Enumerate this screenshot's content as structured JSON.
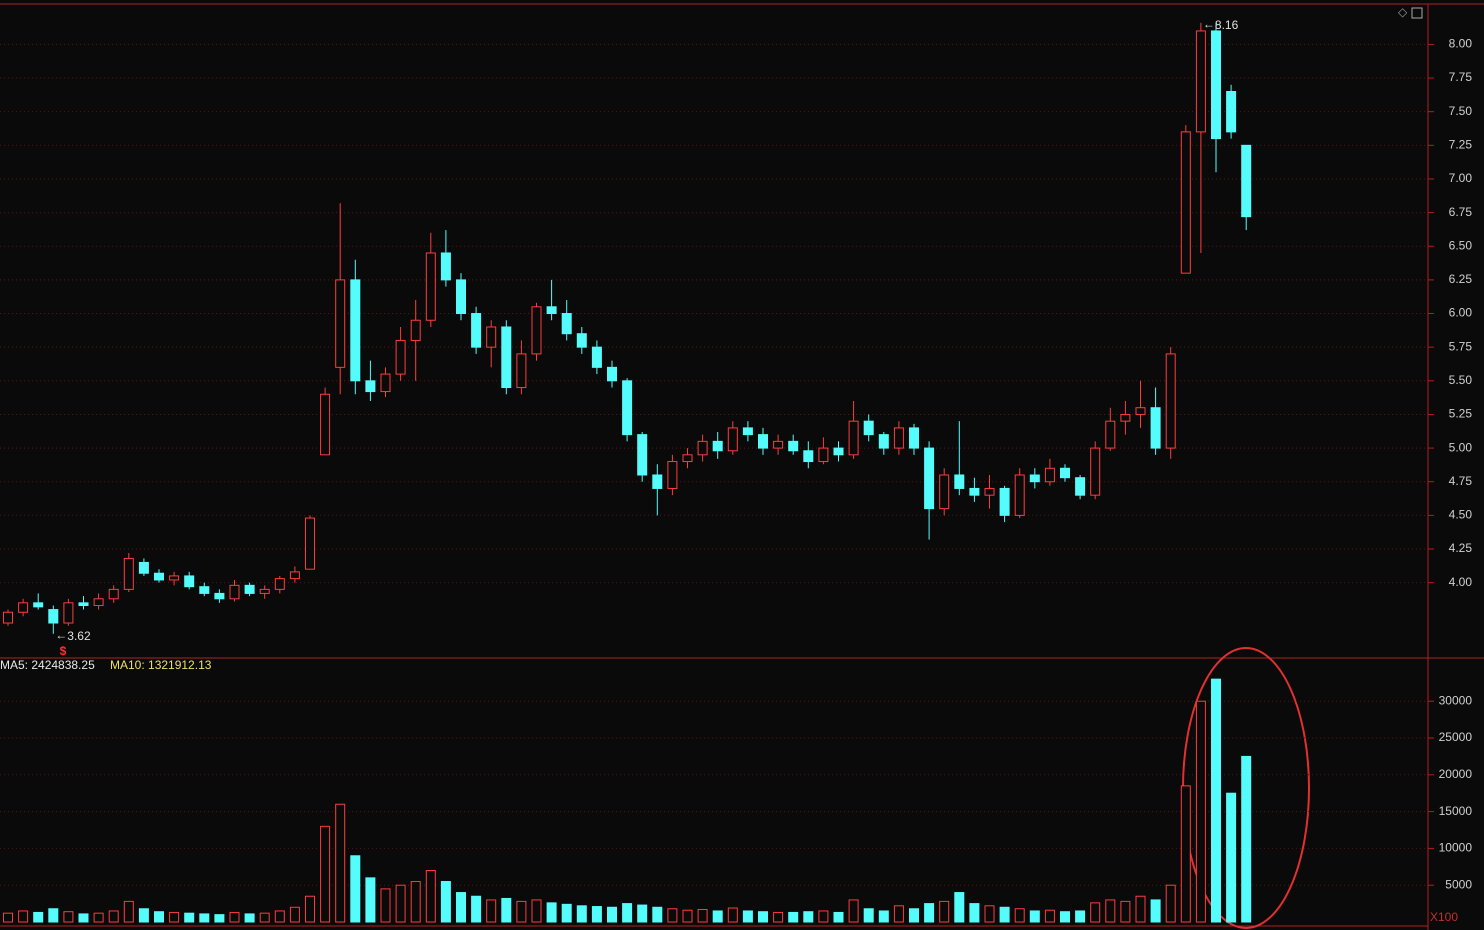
{
  "chart_data": [
    {
      "type": "candlestick",
      "up_color": "#ff3c3c",
      "down_color": "#54fcfc",
      "ylim": [
        3.44,
        8.33
      ],
      "yticks": [
        {
          "value": 4,
          "label": "4.00"
        },
        {
          "value": 4.25,
          "label": "4.25"
        },
        {
          "value": 4.5,
          "label": "4.50"
        },
        {
          "value": 4.75,
          "label": "4.75"
        },
        {
          "value": 5,
          "label": "5.00"
        },
        {
          "value": 5.25,
          "label": "5.25"
        },
        {
          "value": 5.5,
          "label": "5.50"
        },
        {
          "value": 5.75,
          "label": "5.75"
        },
        {
          "value": 6,
          "label": "6.00"
        },
        {
          "value": 6.25,
          "label": "6.25"
        },
        {
          "value": 6.5,
          "label": "6.50"
        },
        {
          "value": 6.75,
          "label": "6.75"
        },
        {
          "value": 7,
          "label": "7.00"
        },
        {
          "value": 7.25,
          "label": "7.25"
        },
        {
          "value": 7.5,
          "label": "7.50"
        },
        {
          "value": 7.75,
          "label": "7.75"
        },
        {
          "value": 8,
          "label": "8.00"
        }
      ],
      "grid": true,
      "open": [
        3.7,
        3.78,
        3.85,
        3.8,
        3.7,
        3.85,
        3.83,
        3.88,
        3.95,
        4.15,
        4.07,
        4.02,
        4.05,
        3.97,
        3.92,
        3.88,
        3.98,
        3.92,
        3.95,
        4.03,
        4.1,
        4.95,
        5.6,
        6.25,
        5.5,
        5.42,
        5.55,
        5.8,
        5.95,
        6.45,
        6.25,
        6.0,
        5.75,
        5.9,
        5.45,
        5.7,
        6.05,
        6.0,
        5.85,
        5.75,
        5.6,
        5.5,
        5.1,
        4.8,
        4.7,
        4.9,
        4.95,
        5.05,
        4.98,
        5.15,
        5.1,
        5.0,
        5.05,
        4.98,
        4.9,
        5.0,
        4.95,
        5.2,
        5.1,
        5.0,
        5.15,
        5.0,
        4.55,
        4.8,
        4.7,
        4.65,
        4.7,
        4.5,
        4.8,
        4.75,
        4.85,
        4.78,
        4.65,
        5.0,
        5.2,
        5.25,
        5.3,
        5.0,
        6.3,
        7.35,
        8.1,
        7.65,
        7.25
      ],
      "high": [
        3.8,
        3.88,
        3.92,
        3.83,
        3.88,
        3.9,
        3.92,
        3.98,
        4.22,
        4.18,
        4.1,
        4.08,
        4.08,
        4.0,
        3.95,
        4.02,
        4.0,
        3.98,
        4.05,
        4.12,
        4.5,
        5.45,
        6.82,
        6.4,
        5.65,
        5.6,
        5.9,
        6.1,
        6.6,
        6.62,
        6.3,
        6.05,
        5.95,
        5.95,
        5.8,
        6.08,
        6.25,
        6.1,
        5.9,
        5.8,
        5.65,
        5.52,
        5.12,
        4.88,
        4.95,
        5.0,
        5.1,
        5.12,
        5.2,
        5.2,
        5.15,
        5.1,
        5.1,
        5.05,
        5.08,
        5.05,
        5.35,
        5.25,
        5.12,
        5.2,
        5.18,
        5.05,
        4.85,
        5.2,
        4.78,
        4.8,
        4.72,
        4.85,
        4.85,
        4.92,
        4.88,
        4.8,
        5.05,
        5.3,
        5.35,
        5.5,
        5.45,
        5.75,
        7.4,
        8.16,
        8.16,
        7.7,
        7.25
      ],
      "low": [
        3.68,
        3.75,
        3.8,
        3.62,
        3.68,
        3.8,
        3.8,
        3.85,
        3.93,
        4.05,
        4.0,
        3.98,
        3.95,
        3.9,
        3.85,
        3.86,
        3.9,
        3.88,
        3.92,
        4.0,
        4.1,
        4.95,
        5.4,
        5.4,
        5.35,
        5.38,
        5.5,
        5.5,
        5.9,
        6.2,
        5.95,
        5.7,
        5.6,
        5.4,
        5.4,
        5.65,
        5.95,
        5.8,
        5.7,
        5.55,
        5.45,
        5.05,
        4.75,
        4.5,
        4.65,
        4.85,
        4.9,
        4.92,
        4.95,
        5.05,
        4.95,
        4.95,
        4.95,
        4.85,
        4.88,
        4.9,
        4.92,
        5.05,
        4.95,
        4.95,
        4.95,
        4.32,
        4.5,
        4.65,
        4.6,
        4.55,
        4.45,
        4.48,
        4.7,
        4.72,
        4.75,
        4.62,
        4.62,
        4.98,
        5.1,
        5.15,
        4.95,
        4.92,
        6.3,
        6.45,
        7.05,
        7.3,
        6.62
      ],
      "close": [
        3.78,
        3.85,
        3.82,
        3.7,
        3.85,
        3.83,
        3.88,
        3.95,
        4.18,
        4.07,
        4.02,
        4.05,
        3.97,
        3.92,
        3.88,
        3.98,
        3.92,
        3.95,
        4.03,
        4.08,
        4.48,
        5.4,
        6.25,
        5.5,
        5.42,
        5.55,
        5.8,
        5.95,
        6.45,
        6.25,
        6.0,
        5.75,
        5.9,
        5.45,
        5.7,
        6.05,
        6.0,
        5.85,
        5.75,
        5.6,
        5.5,
        5.1,
        4.8,
        4.7,
        4.9,
        4.95,
        5.05,
        4.98,
        5.15,
        5.1,
        5.0,
        5.05,
        4.98,
        4.9,
        5.0,
        4.95,
        5.2,
        5.1,
        5.0,
        5.15,
        5.0,
        4.55,
        4.8,
        4.7,
        4.65,
        4.7,
        4.5,
        4.8,
        4.75,
        4.85,
        4.78,
        4.65,
        5.0,
        5.2,
        5.25,
        5.3,
        5.0,
        5.7,
        7.35,
        8.1,
        7.3,
        7.35,
        6.72
      ],
      "annotations": [
        {
          "text": "8.16",
          "value": 8.16,
          "index": 79
        },
        {
          "text": "3.62",
          "value": 3.62,
          "index": 3
        }
      ]
    },
    {
      "type": "bar",
      "up_color": "#ff3c3c",
      "down_color": "#54fcfc",
      "ylim": [
        0,
        35600
      ],
      "yticks": [
        5000,
        10000,
        15000,
        20000,
        25000,
        30000
      ],
      "grid": true,
      "legend": [
        "MA5: 2424838.25",
        "MA10: 1321912.13"
      ],
      "unit_label": "X100",
      "values": [
        1200,
        1500,
        1300,
        1800,
        1400,
        1100,
        1200,
        1500,
        2800,
        1800,
        1400,
        1300,
        1200,
        1100,
        1000,
        1300,
        1100,
        1200,
        1500,
        2000,
        3500,
        13000,
        16000,
        9000,
        6000,
        4500,
        5000,
        5500,
        7000,
        5500,
        4000,
        3500,
        3000,
        3200,
        2800,
        3000,
        2600,
        2400,
        2200,
        2100,
        2000,
        2500,
        2300,
        2000,
        1800,
        1600,
        1700,
        1500,
        1900,
        1500,
        1400,
        1300,
        1300,
        1400,
        1500,
        1300,
        3000,
        1800,
        1500,
        2200,
        1800,
        2500,
        2800,
        4000,
        2500,
        2200,
        2000,
        1800,
        1500,
        1600,
        1400,
        1500,
        2600,
        3000,
        2800,
        3500,
        3000,
        5000,
        18500,
        30000,
        33000,
        17500,
        22500
      ]
    }
  ]
}
